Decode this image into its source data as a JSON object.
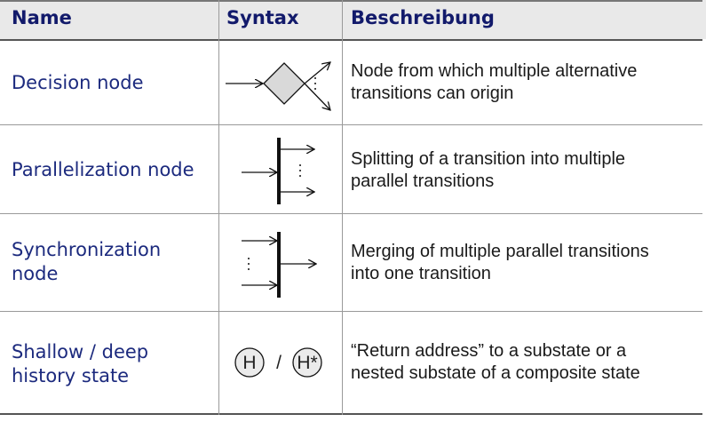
{
  "headers": {
    "name": "Name",
    "syntax": "Syntax",
    "description": "Beschreibung"
  },
  "rows": [
    {
      "name": "Decision node",
      "description_lines": [
        "Node from which multiple alternative",
        "transitions can origin"
      ],
      "symbol": "decision-node-icon"
    },
    {
      "name": "Parallelization node",
      "description_lines": [
        "Splitting of a transition into multiple",
        "parallel transitions"
      ],
      "symbol": "parallelization-bar-icon"
    },
    {
      "name_lines": [
        "Synchronization",
        "node"
      ],
      "description_lines": [
        "Merging of multiple parallel transitions",
        "into one transition"
      ],
      "symbol": "synchronization-bar-icon"
    },
    {
      "name_lines": [
        "Shallow / deep",
        "history state"
      ],
      "description_lines": [
        "“Return address” to a substate or a",
        "nested substate of a composite state"
      ],
      "symbol": "history-state-icon",
      "history": {
        "shallow": "H",
        "separator": "/",
        "deep": "H*"
      }
    }
  ],
  "colors": {
    "header_text": "#121a6b",
    "name_text": "#1c2a7e",
    "header_bg": "#e9e9e9",
    "diamond_fill": "#d9d9d9"
  }
}
